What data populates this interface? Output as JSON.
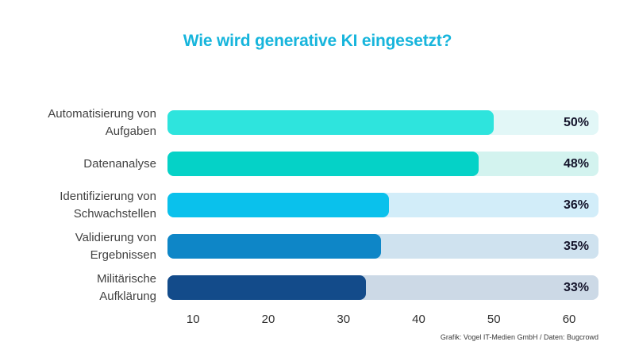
{
  "header": {
    "title": "Wie wird generative KI eingesetzt?",
    "title_color": "#17b5dc"
  },
  "chart_data": {
    "type": "bar",
    "orientation": "horizontal",
    "title": "Wie wird generative KI eingesetzt?",
    "categories": [
      "Automatisierung von Aufgaben",
      "Datenanalyse",
      "Identifizierung von Schwachstellen",
      "Validierung von Ergebnissen",
      "Militärische Aufklärung"
    ],
    "category_lines": [
      [
        "Automatisierung von",
        "Aufgaben"
      ],
      [
        "Datenanalyse"
      ],
      [
        "Identifizierung von",
        "Schwachstellen"
      ],
      [
        "Validierung von",
        "Ergebnissen"
      ],
      [
        "Militärische",
        "Aufklärung"
      ]
    ],
    "values": [
      50,
      48,
      36,
      35,
      33
    ],
    "value_labels": [
      "50%",
      "48%",
      "36%",
      "35%",
      "33%"
    ],
    "bar_colors": [
      "#2ee4dd",
      "#05d2c7",
      "#0ac1ec",
      "#0e86c7",
      "#134b8a"
    ],
    "track_colors": [
      "#e2f7f7",
      "#d3f3ef",
      "#d2edf9",
      "#cfe2ef",
      "#ccd9e6"
    ],
    "xlabel": "",
    "ylabel": "",
    "axis": {
      "min": 6.6,
      "max": 63.9,
      "ticks": [
        10,
        20,
        30,
        40,
        50,
        60
      ]
    },
    "legend": false,
    "grid": false
  },
  "footer": {
    "attribution": "Grafik: Vogel IT-Medien GmbH / Daten: Bugcrowd"
  }
}
